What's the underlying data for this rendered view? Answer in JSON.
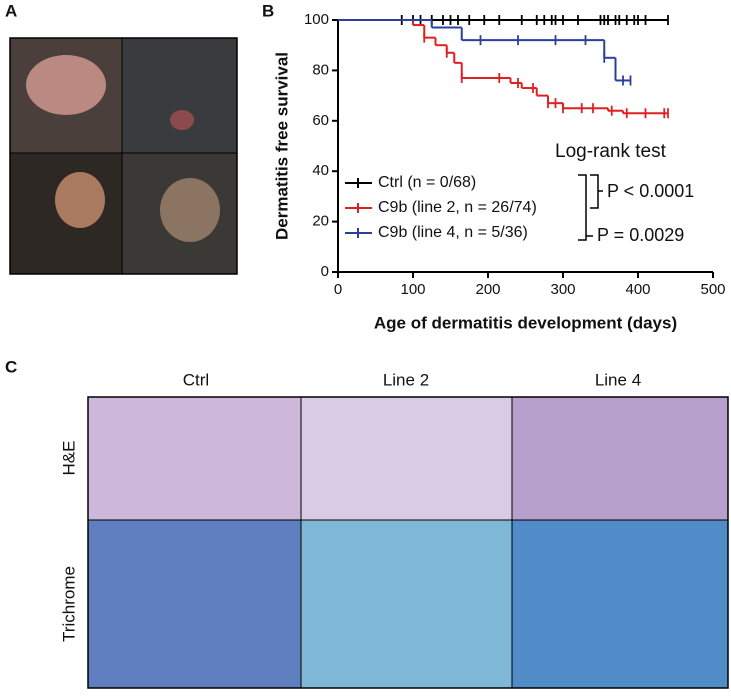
{
  "panel_labels": [
    "A",
    "B",
    "C"
  ],
  "histology": {
    "columns": [
      "Ctrl",
      "Line 2",
      "Line 4"
    ],
    "rows": [
      "H&E",
      "Trichrome"
    ]
  },
  "chart_data": {
    "type": "step",
    "x_label": "Age of dermatitis development (days)",
    "y_label": "Dermatitis free survival",
    "xlim": [
      0,
      500
    ],
    "xticks": [
      0,
      100,
      200,
      300,
      400,
      500
    ],
    "ylim": [
      0,
      100
    ],
    "yticks": [
      0,
      20,
      40,
      60,
      80,
      100
    ],
    "legend": "lower-left",
    "annotations": [
      "Log-rank test",
      "P < 0.0001",
      "P = 0.0029"
    ],
    "series": [
      {
        "name": "Ctrl (n = 0/68)",
        "color": "#000000",
        "x": [
          0
        ],
        "values": [
          100
        ],
        "end": 440,
        "censor_x": [
          85,
          100,
          110,
          125,
          140,
          150,
          160,
          175,
          195,
          215,
          245,
          265,
          275,
          285,
          290,
          300,
          320,
          350,
          355,
          360,
          370,
          375,
          385,
          395,
          400,
          410,
          440
        ]
      },
      {
        "name": "C9b (line 2, n = 26/74)",
        "color": "#e02020",
        "x": [
          0,
          100,
          115,
          130,
          145,
          155,
          165,
          230,
          245,
          265,
          280,
          300,
          360,
          380
        ],
        "values": [
          100,
          98,
          93,
          90,
          87,
          83,
          77,
          75,
          73,
          70,
          67,
          65,
          64,
          63
        ],
        "end": 440,
        "censor_x": [
          115,
          145,
          165,
          215,
          240,
          260,
          280,
          290,
          300,
          325,
          340,
          365,
          385,
          410,
          435,
          440
        ]
      },
      {
        "name": "C9b (line 4, n = 5/36)",
        "color": "#2b3f9e",
        "x": [
          0,
          125,
          165,
          355,
          370
        ],
        "values": [
          100,
          97,
          92,
          85,
          76
        ],
        "end": 390,
        "censor_x": [
          190,
          240,
          290,
          330,
          355,
          380,
          390
        ]
      }
    ]
  }
}
